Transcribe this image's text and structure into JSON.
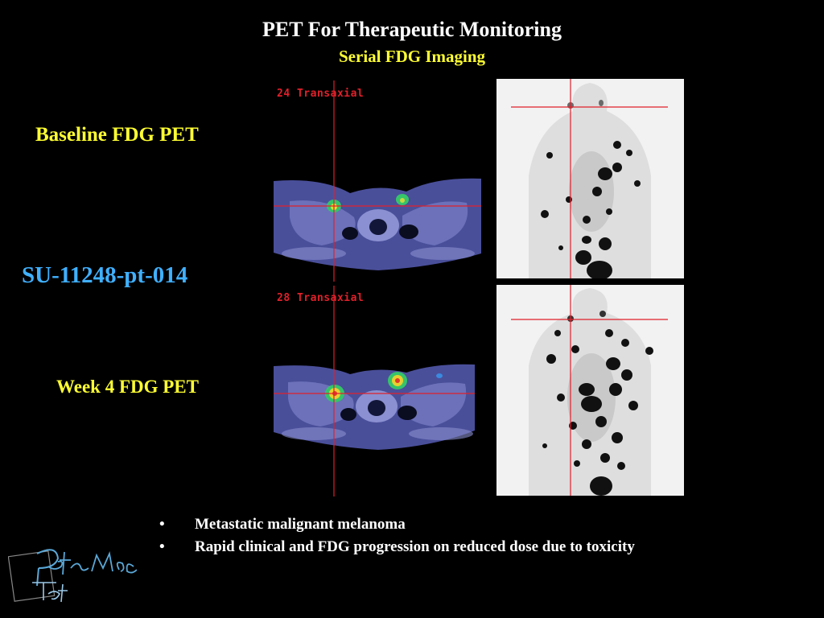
{
  "slide": {
    "title": "PET For Therapeutic Monitoring",
    "subtitle": "Serial FDG Imaging",
    "baseline_label": "Baseline FDG PET",
    "patient_id": "SU-11248-pt-014",
    "week4_label": "Week 4 FDG PET",
    "bullets": [
      "Metastatic malignant melanoma",
      "Rapid clinical and FDG progression on reduced dose due to toxicity"
    ]
  },
  "images": {
    "baseline_axial_label": "24 Transaxial",
    "week4_axial_label": "28 Transaxial"
  },
  "logo": {
    "text": "Peter Mac Pet"
  },
  "colors": {
    "background": "#000000",
    "title": "#ffffff",
    "accent_yellow": "#ffff33",
    "patient_blue": "#40b0ff",
    "crosshair_red": "#e0202a"
  }
}
